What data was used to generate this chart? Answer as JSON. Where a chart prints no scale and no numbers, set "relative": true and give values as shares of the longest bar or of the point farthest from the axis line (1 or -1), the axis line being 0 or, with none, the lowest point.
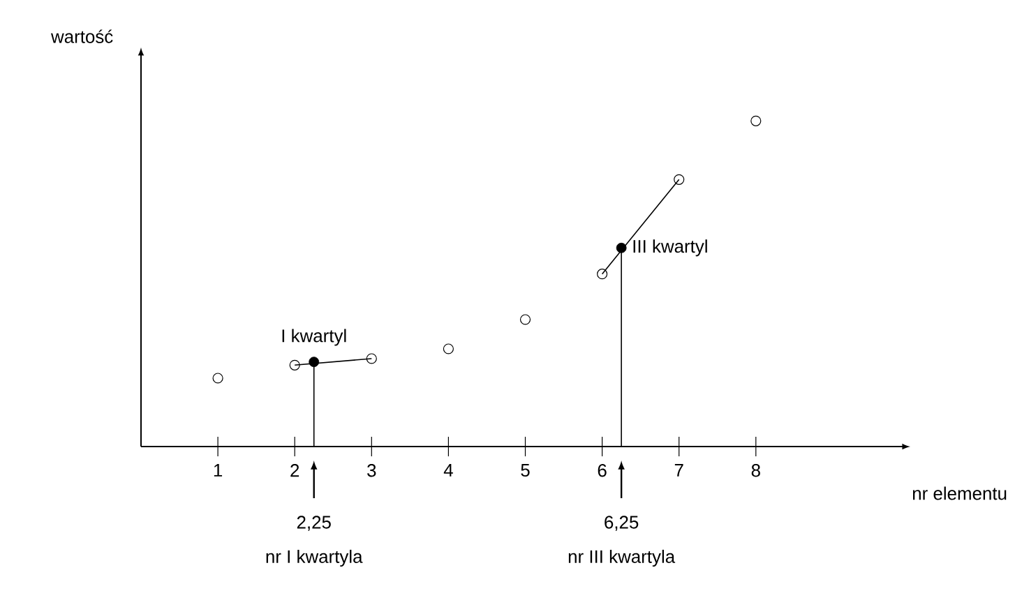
{
  "chart_data": {
    "type": "scatter",
    "relative": true,
    "xlabel": "nr elementu",
    "ylabel": "wartość",
    "xlim": [
      0,
      9.9
    ],
    "xticks": [
      1,
      2,
      3,
      4,
      5,
      6,
      7,
      8
    ],
    "tick_labels": "x",
    "series": [
      {
        "type": "line",
        "marker": "none",
        "color": "#000000",
        "x": [
          2,
          3
        ],
        "values": [
          0.25,
          0.27
        ]
      },
      {
        "type": "line",
        "marker": "none",
        "color": "#000000",
        "x": [
          6,
          7
        ],
        "values": [
          0.53,
          0.82
        ]
      },
      {
        "type": "line",
        "marker": "none",
        "color": "#000000",
        "x": [
          2.25,
          2.25
        ],
        "values": [
          0,
          0.26
        ]
      },
      {
        "type": "line",
        "marker": "none",
        "color": "#000000",
        "x": [
          6.25,
          6.25
        ],
        "values": [
          0,
          0.61
        ]
      },
      {
        "marker": "circle",
        "color": "#000000",
        "x": [
          1,
          2,
          3,
          4,
          5,
          6,
          7,
          8
        ],
        "values": [
          0.21,
          0.25,
          0.27,
          0.3,
          0.39,
          0.53,
          0.82,
          1
        ]
      },
      {
        "marker": "dot",
        "color": "#000000",
        "x": [
          2.25,
          6.25
        ],
        "values": [
          0.26,
          0.61
        ]
      }
    ],
    "annotations": [
      {
        "text": "I kwartyl",
        "x": 2.25,
        "y": 0.26
      },
      {
        "text": "III kwartyl",
        "x": 6.25,
        "y": 0.61
      },
      "2,25",
      "nr I kwartyla",
      "6,25",
      "nr III kwartyla"
    ]
  }
}
